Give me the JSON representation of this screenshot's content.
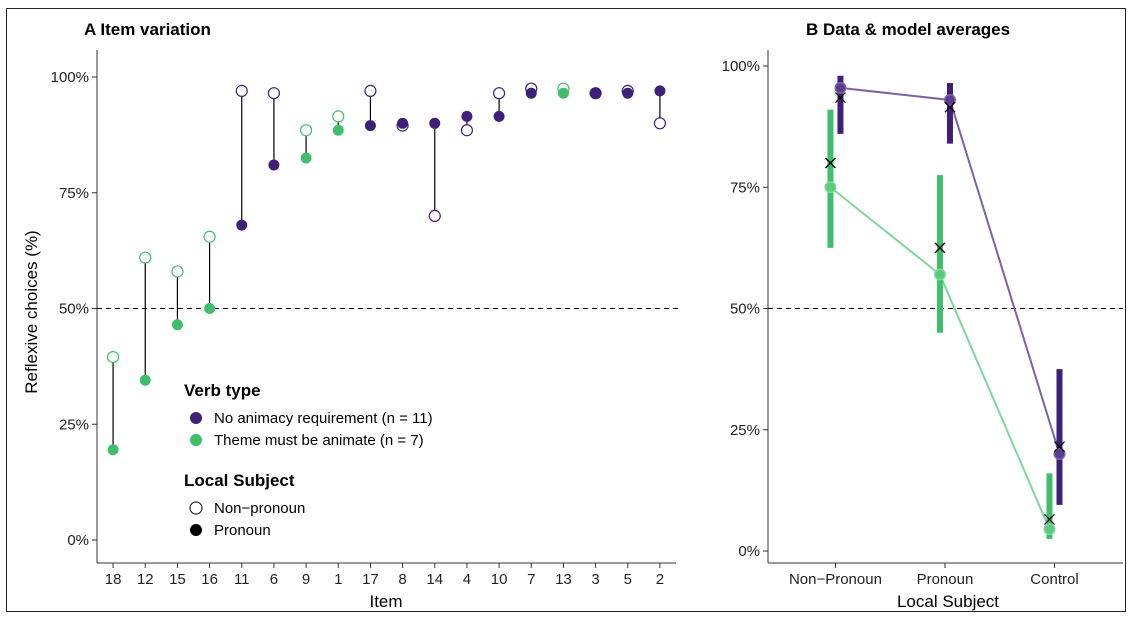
{
  "chart_data": [
    {
      "panel": "A",
      "type": "scatter",
      "title": "A Item variation",
      "xlabel": "Item",
      "ylabel": "Reflexive choices (%)",
      "ylim": [
        0,
        100
      ],
      "yticks": [
        "0%",
        "25%",
        "50%",
        "75%",
        "100%"
      ],
      "reference_line": 50,
      "categories": [
        "18",
        "12",
        "15",
        "16",
        "11",
        "6",
        "9",
        "1",
        "17",
        "8",
        "14",
        "4",
        "10",
        "7",
        "13",
        "3",
        "5",
        "2"
      ],
      "verb_type": [
        "animate",
        "animate",
        "animate",
        "animate",
        "no_req",
        "no_req",
        "animate",
        "animate",
        "no_req",
        "no_req",
        "no_req",
        "no_req",
        "no_req",
        "no_req",
        "animate",
        "no_req",
        "no_req",
        "no_req"
      ],
      "series": [
        {
          "name": "Non-pronoun",
          "values": [
            39.5,
            61,
            58,
            65.5,
            97,
            96.5,
            88.5,
            91.5,
            97,
            89.5,
            70,
            88.5,
            96.5,
            97.5,
            97.5,
            96.5,
            97,
            90
          ]
        },
        {
          "name": "Pronoun",
          "values": [
            19.5,
            34.5,
            46.5,
            50,
            68,
            81,
            82.5,
            88.5,
            89.5,
            90,
            90,
            91.5,
            91.5,
            96.5,
            96.5,
            96.5,
            96.5,
            97
          ]
        }
      ],
      "legend": {
        "verb_title": "Verb type",
        "verb_items": [
          {
            "key": "no_req",
            "label": "No animacy requirement (n = 11)"
          },
          {
            "key": "animate",
            "label": "Theme must be animate (n = 7)"
          }
        ],
        "subject_title": "Local Subject",
        "subject_items": [
          {
            "key": "open",
            "label": "Non−pronoun"
          },
          {
            "key": "filled",
            "label": "Pronoun"
          }
        ]
      }
    },
    {
      "panel": "B",
      "type": "line",
      "title": "B Data & model averages",
      "xlabel": "Local Subject",
      "ylabel": "",
      "ylim": [
        0,
        100
      ],
      "yticks": [
        "0%",
        "25%",
        "50%",
        "75%",
        "100%"
      ],
      "reference_line": 50,
      "categories": [
        "Non−Pronoun",
        "Pronoun",
        "Control"
      ],
      "series": [
        {
          "key": "no_req",
          "data_means": [
            95.5,
            93,
            20
          ],
          "model_means": [
            93.5,
            91.5,
            21.5
          ],
          "ci_low": [
            86,
            84,
            9.5
          ],
          "ci_high": [
            98,
            96.5,
            37.5
          ]
        },
        {
          "key": "animate",
          "data_means": [
            75,
            57,
            4.5
          ],
          "model_means": [
            80,
            62.5,
            6.5
          ],
          "ci_low": [
            62.5,
            45,
            2.5
          ],
          "ci_high": [
            91,
            77.5,
            16
          ]
        }
      ]
    }
  ],
  "colors": {
    "no_req": "#3f1f78",
    "animate": "#3fbf6b",
    "no_req_line": "#7b62a8",
    "animate_line": "#7dd79a",
    "axis": "#333333",
    "stem": "#000000"
  }
}
